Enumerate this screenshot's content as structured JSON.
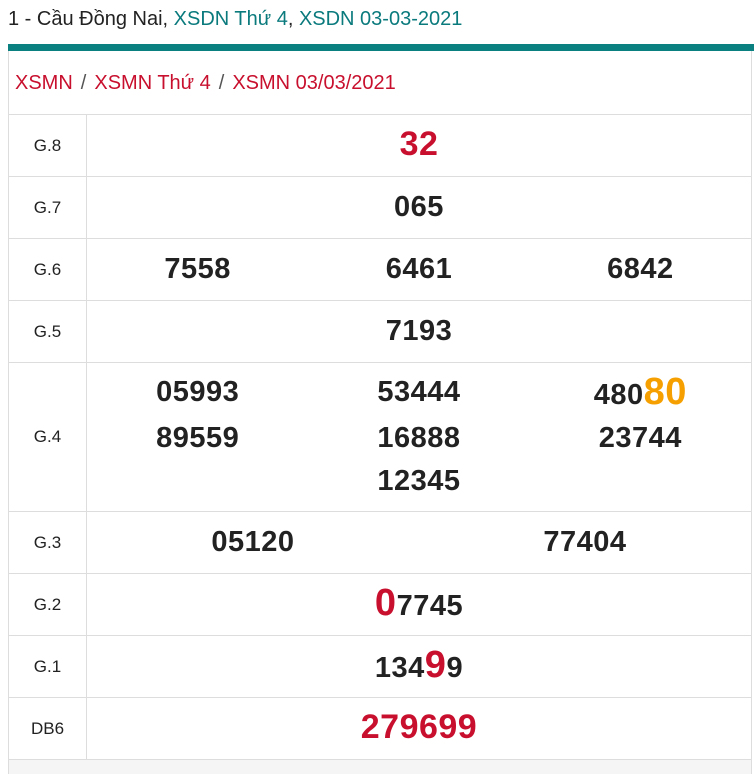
{
  "header": {
    "prefix": "1 - Cầu Đồng Nai, ",
    "link1": "XSDN Thứ 4",
    "sep": ", ",
    "link2": "XSDN 03-03-2021"
  },
  "breadcrumb": {
    "items": [
      "XSMN",
      "XSMN Thứ 4",
      "XSMN 03/03/2021"
    ],
    "separator": "/"
  },
  "colors": {
    "accent": "#0b8080",
    "red": "#c8102e",
    "orange": "#f5a000"
  },
  "results": [
    {
      "label": "G.8",
      "numbers": [
        [
          {
            "t": "32",
            "s": "allred"
          }
        ]
      ]
    },
    {
      "label": "G.7",
      "numbers": [
        [
          {
            "t": "065"
          }
        ]
      ]
    },
    {
      "label": "G.6",
      "numbers": [
        [
          {
            "t": "7558"
          }
        ],
        [
          {
            "t": "6461"
          }
        ],
        [
          {
            "t": "6842"
          }
        ]
      ]
    },
    {
      "label": "G.5",
      "numbers": [
        [
          {
            "t": "7193"
          }
        ]
      ]
    },
    {
      "label": "G.4",
      "numbers": [
        [
          {
            "t": "05993"
          }
        ],
        [
          {
            "t": "53444"
          }
        ],
        [
          {
            "t": "480"
          },
          {
            "t": "80",
            "s": "hl-org"
          }
        ],
        [
          {
            "t": "89559"
          }
        ],
        [
          {
            "t": "16888"
          }
        ],
        [
          {
            "t": "23744"
          }
        ],
        [
          {
            "t": "12345"
          }
        ]
      ]
    },
    {
      "label": "G.3",
      "numbers": [
        [
          {
            "t": "05120"
          }
        ],
        [
          {
            "t": "77404"
          }
        ]
      ]
    },
    {
      "label": "G.2",
      "numbers": [
        [
          {
            "t": "0",
            "s": "hl-red"
          },
          {
            "t": "7745"
          }
        ]
      ]
    },
    {
      "label": "G.1",
      "numbers": [
        [
          {
            "t": "134"
          },
          {
            "t": "9",
            "s": "hl-red"
          },
          {
            "t": "9"
          }
        ]
      ]
    },
    {
      "label": "DB6",
      "numbers": [
        [
          {
            "t": "279699",
            "s": "allred"
          }
        ]
      ]
    }
  ]
}
